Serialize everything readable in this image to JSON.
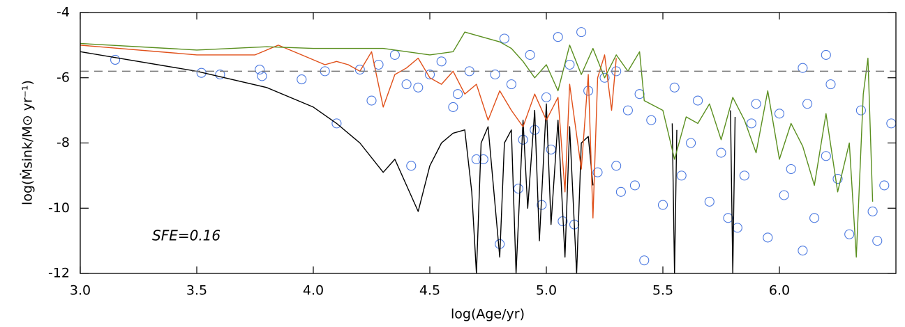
{
  "chart_data": {
    "type": "line",
    "xlabel": "log(Age/yr)",
    "ylabel": "log(Ṁsink/M⊙ yr⁻¹)",
    "annotation": "SFE=0.16",
    "xlim": [
      3,
      6.5
    ],
    "xticks": [
      {
        "value": 3,
        "label": "3.0"
      },
      {
        "value": 3.5,
        "label": "3.5"
      },
      {
        "value": 4,
        "label": "4.0"
      },
      {
        "value": 4.5,
        "label": "4.5"
      },
      {
        "value": 5,
        "label": "5.0"
      },
      {
        "value": 5.5,
        "label": "5.5"
      },
      {
        "value": 6,
        "label": "6.0"
      }
    ],
    "ylim": [
      -12,
      -4
    ],
    "yticks": [
      -12,
      -10,
      -8,
      -6,
      -4
    ],
    "grid": false,
    "hline": -5.8,
    "hline_color": "#777777",
    "series": [
      {
        "color": "#000000",
        "x": [
          3.0,
          3.5,
          3.8,
          4.0,
          4.1,
          4.2,
          4.3,
          4.35,
          4.4,
          4.45,
          4.5,
          4.55,
          4.6,
          4.65,
          4.68,
          4.7,
          4.72,
          4.75,
          4.8,
          4.82,
          4.85,
          4.87,
          4.9,
          4.92,
          4.95,
          4.97,
          5.0,
          5.02,
          5.05,
          5.08,
          5.1,
          5.13,
          5.15,
          5.18,
          5.2,
          5.3,
          5.54,
          5.55,
          5.56,
          5.6,
          5.79,
          5.8,
          5.81
        ],
        "values": [
          -5.2,
          -5.8,
          -6.3,
          -6.9,
          -7.4,
          -8.0,
          -8.9,
          -8.5,
          -9.3,
          -10.1,
          -8.7,
          -8.0,
          -7.7,
          -7.6,
          -9.5,
          -12,
          -8,
          -7.5,
          -11.5,
          -8,
          -7.6,
          -12,
          -7.3,
          -10,
          -7.0,
          -11,
          -6.8,
          -10.5,
          -7.3,
          -11.5,
          -7.5,
          -12,
          -8,
          -7.8,
          -9.3,
          null,
          -7.4,
          -12,
          -7.6,
          null,
          -7.0,
          -12,
          -7.2
        ]
      },
      {
        "color": "#e0501a",
        "x": [
          3.0,
          3.5,
          3.75,
          3.85,
          3.95,
          4.05,
          4.1,
          4.15,
          4.2,
          4.25,
          4.3,
          4.35,
          4.4,
          4.45,
          4.5,
          4.55,
          4.6,
          4.65,
          4.7,
          4.75,
          4.8,
          4.85,
          4.9,
          4.95,
          5.0,
          5.05,
          5.08,
          5.1,
          5.15,
          5.18,
          5.2,
          5.22,
          5.25,
          5.28,
          5.3
        ],
        "values": [
          -5.0,
          -5.3,
          -5.3,
          -5.0,
          -5.3,
          -5.6,
          -5.5,
          -5.6,
          -5.8,
          -5.2,
          -6.9,
          -5.9,
          -5.7,
          -5.4,
          -6.0,
          -6.2,
          -5.8,
          -6.5,
          -6.2,
          -7.3,
          -6.4,
          -7.0,
          -7.5,
          -6.5,
          -7.3,
          -6.6,
          -9.5,
          -6.2,
          -8.8,
          -5.9,
          -10.3,
          -6.0,
          -5.3,
          -7.0,
          -5.4
        ]
      },
      {
        "color": "#5a8f1f",
        "x": [
          3.0,
          3.5,
          3.8,
          4.0,
          4.3,
          4.5,
          4.6,
          4.65,
          4.7,
          4.8,
          4.85,
          4.9,
          4.95,
          5.0,
          5.05,
          5.1,
          5.15,
          5.2,
          5.25,
          5.3,
          5.35,
          5.4,
          5.42,
          5.5,
          5.55,
          5.6,
          5.65,
          5.7,
          5.75,
          5.8,
          5.85,
          5.9,
          5.95,
          6.0,
          6.05,
          6.1,
          6.15,
          6.2,
          6.25,
          6.3,
          6.33,
          6.36,
          6.38,
          6.4
        ],
        "values": [
          -4.95,
          -5.15,
          -5.05,
          -5.1,
          -5.1,
          -5.3,
          -5.2,
          -4.6,
          -4.7,
          -4.9,
          -5.1,
          -5.5,
          -6.0,
          -5.6,
          -6.4,
          -5.0,
          -5.9,
          -5.1,
          -6.0,
          -5.3,
          -5.8,
          -5.2,
          -6.7,
          -7.0,
          -8.5,
          -7.2,
          -7.4,
          -6.8,
          -7.9,
          -6.6,
          -7.3,
          -8.3,
          -6.4,
          -8.5,
          -7.4,
          -8.1,
          -9.3,
          -7.1,
          -9.5,
          -8.0,
          -11.5,
          -6.5,
          -5.4,
          -9.8
        ]
      }
    ],
    "scatter": {
      "color": "#4a78e0",
      "x": [
        3.15,
        3.52,
        3.6,
        3.77,
        3.78,
        3.95,
        4.05,
        4.1,
        4.2,
        4.25,
        4.28,
        4.35,
        4.4,
        4.42,
        4.45,
        4.5,
        4.55,
        4.6,
        4.62,
        4.67,
        4.7,
        4.73,
        4.78,
        4.8,
        4.82,
        4.85,
        4.88,
        4.9,
        4.93,
        4.95,
        5.0,
        5.02,
        5.05,
        5.07,
        5.1,
        5.12,
        5.15,
        5.18,
        5.22,
        5.25,
        5.3,
        5.32,
        5.35,
        5.38,
        5.4,
        5.42,
        5.45,
        5.5,
        5.55,
        5.58,
        5.62,
        5.65,
        5.7,
        5.75,
        5.78,
        5.82,
        5.85,
        5.88,
        5.9,
        5.95,
        6.0,
        6.02,
        6.05,
        6.1,
        6.12,
        6.15,
        6.2,
        6.22,
        6.25,
        6.3,
        6.35,
        6.4,
        6.42,
        6.45,
        6.48,
        6.1,
        5.3,
        4.98,
        6.2
      ],
      "values": [
        -5.45,
        -5.85,
        -5.9,
        -5.75,
        -5.95,
        -6.05,
        -5.8,
        -7.4,
        -5.75,
        -6.7,
        -5.6,
        -5.3,
        -6.2,
        -8.7,
        -6.3,
        -5.9,
        -5.5,
        -6.9,
        -6.5,
        -5.8,
        -8.5,
        -8.5,
        -5.9,
        -11.1,
        -4.8,
        -6.2,
        -9.4,
        -7.9,
        -5.3,
        -7.6,
        -6.6,
        -8.2,
        -4.75,
        -10.4,
        -5.6,
        -10.5,
        -4.6,
        -6.4,
        -8.9,
        -6.0,
        -8.7,
        -9.5,
        -7.0,
        -9.3,
        -6.5,
        -11.6,
        -7.3,
        -9.9,
        -6.3,
        -9.0,
        -8.0,
        -6.7,
        -9.8,
        -8.3,
        -10.3,
        -10.6,
        -9.0,
        -7.4,
        -6.8,
        -10.9,
        -7.1,
        -9.6,
        -8.8,
        -11.3,
        -6.8,
        -10.3,
        -8.4,
        -6.2,
        -9.1,
        -10.8,
        -7.0,
        -10.1,
        -11.0,
        -9.3,
        -7.4,
        -5.7,
        -5.8,
        -9.9,
        -5.3
      ]
    }
  }
}
